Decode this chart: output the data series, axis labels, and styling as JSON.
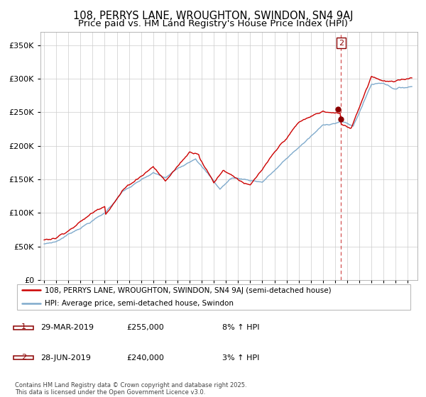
{
  "title_line1": "108, PERRYS LANE, WROUGHTON, SWINDON, SN4 9AJ",
  "title_line2": "Price paid vs. HM Land Registry's House Price Index (HPI)",
  "legend_line1": "108, PERRYS LANE, WROUGHTON, SWINDON, SN4 9AJ (semi-detached house)",
  "legend_line2": "HPI: Average price, semi-detached house, Swindon",
  "footer": "Contains HM Land Registry data © Crown copyright and database right 2025.\nThis data is licensed under the Open Government Licence v3.0.",
  "annotation1_date": "29-MAR-2019",
  "annotation1_price": "£255,000",
  "annotation1_hpi": "8% ↑ HPI",
  "annotation2_date": "28-JUN-2019",
  "annotation2_price": "£240,000",
  "annotation2_hpi": "3% ↑ HPI",
  "sale1_date_num": 2019.23,
  "sale1_price": 255000,
  "sale2_date_num": 2019.49,
  "sale2_price": 240000,
  "red_color": "#cc0000",
  "blue_color": "#7faacc",
  "bg_color": "#ffffff",
  "grid_color": "#cccccc",
  "ylim": [
    0,
    370000
  ],
  "xlim_start": 1994.7,
  "xlim_end": 2025.8,
  "title_fontsize": 10.5,
  "subtitle_fontsize": 9.5,
  "ytick_fontsize": 8,
  "xtick_fontsize": 6.5,
  "legend_fontsize": 7.5,
  "ann_fontsize": 8,
  "footer_fontsize": 6
}
